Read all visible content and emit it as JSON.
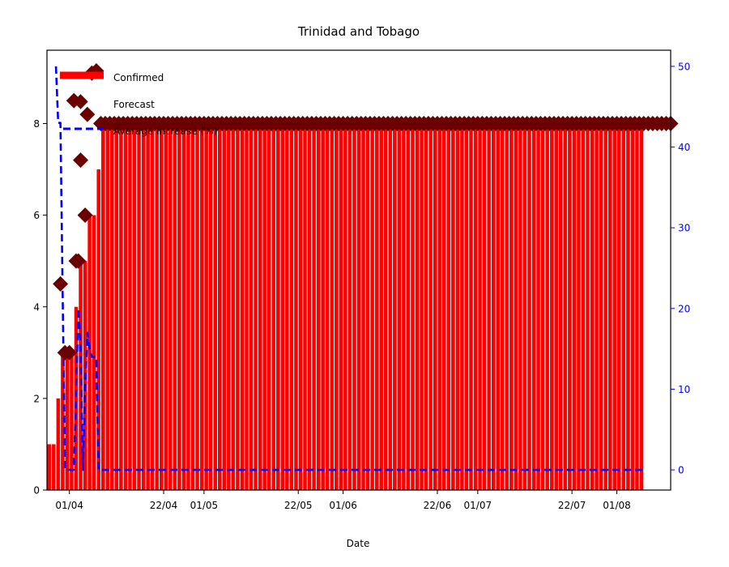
{
  "chart_data": {
    "type": "bar",
    "title": "Trinidad and Tobago",
    "xlabel": "Date",
    "ylabel": "",
    "ylim": [
      0,
      9.6
    ],
    "y2lim": [
      -2.5,
      52
    ],
    "yticks": [
      0,
      2,
      4,
      6,
      8
    ],
    "y2ticks": [
      0,
      10,
      20,
      30,
      40,
      50
    ],
    "xticks": [
      {
        "label": "01/04",
        "day": 5
      },
      {
        "label": "22/04",
        "day": 26
      },
      {
        "label": "01/05",
        "day": 35
      },
      {
        "label": "22/05",
        "day": 56
      },
      {
        "label": "01/06",
        "day": 66
      },
      {
        "label": "22/06",
        "day": 87
      },
      {
        "label": "01/07",
        "day": 96
      },
      {
        "label": "22/07",
        "day": 117
      },
      {
        "label": "01/08",
        "day": 127
      }
    ],
    "x_start_day": 0,
    "x_end_day": 139,
    "colors": {
      "confirmed": "#ff0000",
      "forecast": "#6b0000",
      "average": "#0000ff",
      "right_axis": "#0000ff"
    },
    "legend": {
      "position": "top-left",
      "entries": [
        "Confirmed",
        "Forecast",
        "Average increase (%)"
      ]
    },
    "series": [
      {
        "name": "Confirmed",
        "kind": "bar",
        "axis": "left",
        "start_day": 0,
        "values": [
          1,
          1,
          2,
          3,
          3,
          3,
          4,
          5,
          5,
          6,
          6,
          7,
          8,
          8,
          8,
          8,
          8,
          8,
          8,
          8,
          8,
          8,
          8,
          8,
          8,
          8,
          8,
          8,
          8,
          8,
          8,
          8,
          8,
          8,
          8,
          8,
          8,
          8,
          8,
          8,
          8,
          8,
          8,
          8,
          8,
          8,
          8,
          8,
          8,
          8,
          8,
          8,
          8,
          8,
          8,
          8,
          8,
          8,
          8,
          8,
          8,
          8,
          8,
          8,
          8,
          8,
          8,
          8,
          8,
          8,
          8,
          8,
          8,
          8,
          8,
          8,
          8,
          8,
          8,
          8,
          8,
          8,
          8,
          8,
          8,
          8,
          8,
          8,
          8,
          8,
          8,
          8,
          8,
          8,
          8,
          8,
          8,
          8,
          8,
          8,
          8,
          8,
          8,
          8,
          8,
          8,
          8,
          8,
          8,
          8,
          8,
          8,
          8,
          8,
          8,
          8,
          8,
          8,
          8,
          8,
          8,
          8,
          8,
          8,
          8,
          8,
          8,
          8,
          8,
          8,
          8,
          8,
          8
        ]
      },
      {
        "name": "Forecast",
        "kind": "scatter",
        "axis": "left",
        "points": [
          [
            3,
            4.5
          ],
          [
            4,
            3.0
          ],
          [
            5,
            3.0
          ],
          [
            6,
            8.5
          ],
          [
            6.5,
            5.0
          ],
          [
            7,
            5.0
          ],
          [
            7.5,
            7.2
          ],
          [
            8.5,
            6.0
          ],
          [
            9,
            8.2
          ],
          [
            10,
            9.1
          ],
          [
            11,
            9.15
          ],
          [
            12,
            8.0
          ],
          [
            13,
            8.0
          ],
          [
            14,
            8.0
          ],
          [
            15,
            8.0
          ],
          [
            16,
            8.0
          ],
          [
            17,
            8.0
          ],
          [
            18,
            8.0
          ],
          [
            19,
            8.0
          ],
          [
            20,
            8.0
          ],
          [
            21,
            8.0
          ],
          [
            22,
            8.0
          ],
          [
            23,
            8.0
          ],
          [
            24,
            8.0
          ],
          [
            25,
            8.0
          ],
          [
            26,
            8.0
          ],
          [
            27,
            8.0
          ],
          [
            28,
            8.0
          ],
          [
            29,
            8.0
          ],
          [
            30,
            8.0
          ],
          [
            31,
            8.0
          ],
          [
            32,
            8.0
          ],
          [
            33,
            8.0
          ],
          [
            34,
            8.0
          ],
          [
            35,
            8.0
          ],
          [
            36,
            8.0
          ],
          [
            37,
            8.0
          ],
          [
            38,
            8.0
          ],
          [
            39,
            8.0
          ],
          [
            40,
            8.0
          ],
          [
            41,
            8.0
          ],
          [
            42,
            8.0
          ],
          [
            43,
            8.0
          ],
          [
            44,
            8.0
          ],
          [
            45,
            8.0
          ],
          [
            46,
            8.0
          ],
          [
            47,
            8.0
          ],
          [
            48,
            8.0
          ],
          [
            49,
            8.0
          ],
          [
            50,
            8.0
          ],
          [
            51,
            8.0
          ],
          [
            52,
            8.0
          ],
          [
            53,
            8.0
          ],
          [
            54,
            8.0
          ],
          [
            55,
            8.0
          ],
          [
            56,
            8.0
          ],
          [
            57,
            8.0
          ],
          [
            58,
            8.0
          ],
          [
            59,
            8.0
          ],
          [
            60,
            8.0
          ],
          [
            61,
            8.0
          ],
          [
            62,
            8.0
          ],
          [
            63,
            8.0
          ],
          [
            64,
            8.0
          ],
          [
            65,
            8.0
          ],
          [
            66,
            8.0
          ],
          [
            67,
            8.0
          ],
          [
            68,
            8.0
          ],
          [
            69,
            8.0
          ],
          [
            70,
            8.0
          ],
          [
            71,
            8.0
          ],
          [
            72,
            8.0
          ],
          [
            73,
            8.0
          ],
          [
            74,
            8.0
          ],
          [
            75,
            8.0
          ],
          [
            76,
            8.0
          ],
          [
            77,
            8.0
          ],
          [
            78,
            8.0
          ],
          [
            79,
            8.0
          ],
          [
            80,
            8.0
          ],
          [
            81,
            8.0
          ],
          [
            82,
            8.0
          ],
          [
            83,
            8.0
          ],
          [
            84,
            8.0
          ],
          [
            85,
            8.0
          ],
          [
            86,
            8.0
          ],
          [
            87,
            8.0
          ],
          [
            88,
            8.0
          ],
          [
            89,
            8.0
          ],
          [
            90,
            8.0
          ],
          [
            91,
            8.0
          ],
          [
            92,
            8.0
          ],
          [
            93,
            8.0
          ],
          [
            94,
            8.0
          ],
          [
            95,
            8.0
          ],
          [
            96,
            8.0
          ],
          [
            97,
            8.0
          ],
          [
            98,
            8.0
          ],
          [
            99,
            8.0
          ],
          [
            100,
            8.0
          ],
          [
            101,
            8.0
          ],
          [
            102,
            8.0
          ],
          [
            103,
            8.0
          ],
          [
            104,
            8.0
          ],
          [
            105,
            8.0
          ],
          [
            106,
            8.0
          ],
          [
            107,
            8.0
          ],
          [
            108,
            8.0
          ],
          [
            109,
            8.0
          ],
          [
            110,
            8.0
          ],
          [
            111,
            8.0
          ],
          [
            112,
            8.0
          ],
          [
            113,
            8.0
          ],
          [
            114,
            8.0
          ],
          [
            115,
            8.0
          ],
          [
            116,
            8.0
          ],
          [
            117,
            8.0
          ],
          [
            118,
            8.0
          ],
          [
            119,
            8.0
          ],
          [
            120,
            8.0
          ],
          [
            121,
            8.0
          ],
          [
            122,
            8.0
          ],
          [
            123,
            8.0
          ],
          [
            124,
            8.0
          ],
          [
            125,
            8.0
          ],
          [
            126,
            8.0
          ],
          [
            127,
            8.0
          ],
          [
            128,
            8.0
          ],
          [
            129,
            8.0
          ],
          [
            130,
            8.0
          ],
          [
            131,
            8.0
          ],
          [
            132,
            8.0
          ],
          [
            133,
            8.0
          ],
          [
            134,
            8.0
          ],
          [
            135,
            8.0
          ],
          [
            136,
            8.0
          ],
          [
            137,
            8.0
          ],
          [
            138,
            8.0
          ],
          [
            139,
            8.0
          ]
        ]
      },
      {
        "name": "Average increase (%)",
        "kind": "line",
        "axis": "right",
        "points": [
          [
            2,
            50
          ],
          [
            2.5,
            43
          ],
          [
            3,
            43
          ],
          [
            4,
            0
          ],
          [
            5,
            0
          ],
          [
            6,
            0
          ],
          [
            6.5,
            10
          ],
          [
            7,
            20
          ],
          [
            7.5,
            15
          ],
          [
            8,
            0
          ],
          [
            8.5,
            10
          ],
          [
            9,
            17
          ],
          [
            9.5,
            15
          ],
          [
            10,
            14
          ],
          [
            11,
            14
          ],
          [
            11.5,
            0
          ],
          [
            12,
            0
          ],
          [
            20,
            0
          ],
          [
            40,
            0
          ],
          [
            60,
            0
          ],
          [
            80,
            0
          ],
          [
            100,
            0
          ],
          [
            120,
            0
          ],
          [
            133,
            0
          ]
        ]
      }
    ]
  }
}
